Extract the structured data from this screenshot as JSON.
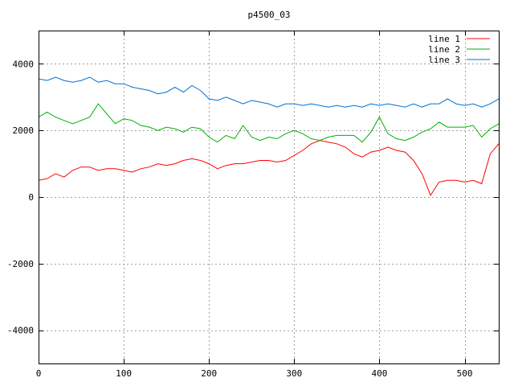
{
  "chart_data": {
    "type": "line",
    "title": "p4500_03",
    "xlabel": "",
    "ylabel": "",
    "xlim": [
      0,
      540
    ],
    "ylim": [
      -5000,
      5000
    ],
    "x_ticks": [
      0,
      100,
      200,
      300,
      400,
      500
    ],
    "y_ticks": [
      -4000,
      -2000,
      0,
      2000,
      4000
    ],
    "grid": true,
    "legend_position": "top-right",
    "x": [
      0,
      10,
      20,
      30,
      40,
      50,
      60,
      70,
      80,
      90,
      100,
      110,
      120,
      130,
      140,
      150,
      160,
      170,
      180,
      190,
      200,
      210,
      220,
      230,
      240,
      250,
      260,
      270,
      280,
      290,
      300,
      310,
      320,
      330,
      340,
      350,
      360,
      370,
      380,
      390,
      400,
      410,
      420,
      430,
      440,
      450,
      460,
      470,
      480,
      490,
      500,
      510,
      520,
      530,
      540
    ],
    "series": [
      {
        "name": "line 1",
        "color": "#ff0000",
        "values": [
          500,
          550,
          700,
          600,
          800,
          900,
          900,
          800,
          850,
          850,
          800,
          750,
          850,
          900,
          1000,
          950,
          1000,
          1100,
          1150,
          1100,
          1000,
          850,
          950,
          1000,
          1000,
          1050,
          1100,
          1100,
          1050,
          1100,
          1250,
          1400,
          1600,
          1700,
          1650,
          1600,
          1500,
          1300,
          1200,
          1350,
          1400,
          1500,
          1400,
          1350,
          1100,
          700,
          50,
          450,
          500,
          500,
          450,
          500,
          400,
          1300,
          1600
        ]
      },
      {
        "name": "line 2",
        "color": "#00b000",
        "values": [
          2400,
          2550,
          2400,
          2300,
          2200,
          2300,
          2400,
          2800,
          2500,
          2200,
          2350,
          2300,
          2150,
          2100,
          2000,
          2100,
          2050,
          1950,
          2100,
          2050,
          1800,
          1650,
          1850,
          1750,
          2150,
          1800,
          1700,
          1800,
          1750,
          1900,
          2000,
          1900,
          1750,
          1700,
          1800,
          1850,
          1850,
          1850,
          1650,
          1950,
          2400,
          1900,
          1750,
          1700,
          1800,
          1950,
          2050,
          2250,
          2100,
          2100,
          2100,
          2150,
          1800,
          2050,
          2200
        ]
      },
      {
        "name": "line 3",
        "color": "#0070d0",
        "values": [
          3550,
          3500,
          3600,
          3500,
          3450,
          3500,
          3600,
          3450,
          3500,
          3400,
          3400,
          3300,
          3250,
          3200,
          3100,
          3150,
          3300,
          3150,
          3350,
          3200,
          2950,
          2900,
          3000,
          2900,
          2800,
          2900,
          2850,
          2800,
          2700,
          2800,
          2800,
          2750,
          2800,
          2750,
          2700,
          2750,
          2700,
          2750,
          2700,
          2800,
          2750,
          2800,
          2750,
          2700,
          2800,
          2700,
          2800,
          2800,
          2950,
          2800,
          2750,
          2800,
          2700,
          2800,
          2950
        ]
      }
    ]
  }
}
